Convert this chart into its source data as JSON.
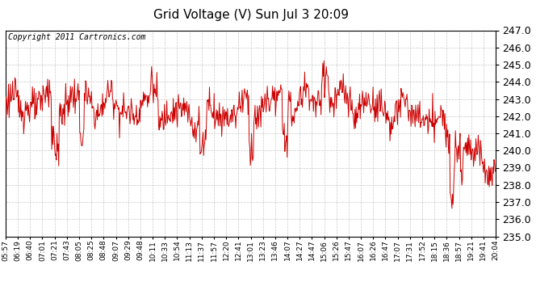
{
  "title": "Grid Voltage (V) Sun Jul 3 20:09",
  "copyright": "Copyright 2011 Cartronics.com",
  "line_color": "#cc0000",
  "background_color": "#ffffff",
  "grid_color": "#bbbbbb",
  "ylim": [
    235.0,
    247.0
  ],
  "yticks": [
    235.0,
    236.0,
    237.0,
    238.0,
    239.0,
    240.0,
    241.0,
    242.0,
    243.0,
    244.0,
    245.0,
    246.0,
    247.0
  ],
  "xtick_labels": [
    "05:57",
    "06:19",
    "06:40",
    "07:01",
    "07:21",
    "07:43",
    "08:05",
    "08:25",
    "08:48",
    "09:07",
    "09:29",
    "09:48",
    "10:11",
    "10:33",
    "10:54",
    "11:13",
    "11:37",
    "11:57",
    "12:20",
    "12:41",
    "13:01",
    "13:23",
    "13:46",
    "14:07",
    "14:27",
    "14:47",
    "15:06",
    "15:26",
    "15:47",
    "16:07",
    "16:26",
    "16:47",
    "17:07",
    "17:31",
    "17:52",
    "18:15",
    "18:36",
    "18:57",
    "19:21",
    "19:41",
    "20:04"
  ],
  "title_fontsize": 11,
  "ylabel_fontsize": 9,
  "xlabel_fontsize": 6.5,
  "copyright_fontsize": 7
}
